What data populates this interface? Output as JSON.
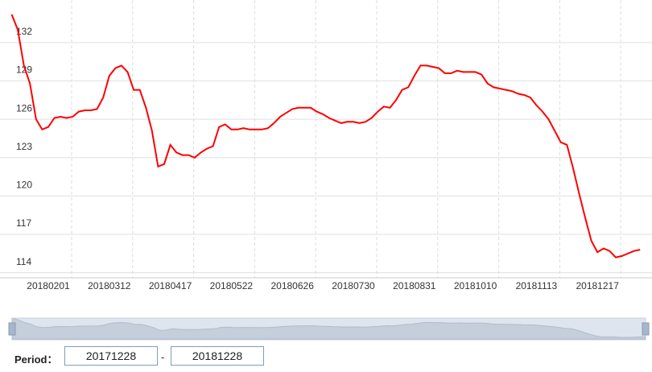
{
  "chart_data": {
    "type": "line",
    "categories": [
      null,
      null,
      null,
      null,
      null,
      null,
      "20180201",
      null,
      null,
      null,
      null,
      null,
      null,
      null,
      null,
      null,
      "20180312",
      null,
      null,
      null,
      null,
      null,
      null,
      null,
      null,
      null,
      "20180417",
      null,
      null,
      null,
      null,
      null,
      null,
      null,
      null,
      null,
      "20180522",
      null,
      null,
      null,
      null,
      null,
      null,
      null,
      null,
      null,
      "20180626",
      null,
      null,
      null,
      null,
      null,
      null,
      null,
      null,
      null,
      "20180730",
      null,
      null,
      null,
      null,
      null,
      null,
      null,
      null,
      null,
      "20180831",
      null,
      null,
      null,
      null,
      null,
      null,
      null,
      null,
      null,
      "20181010",
      null,
      null,
      null,
      null,
      null,
      null,
      null,
      null,
      null,
      "20181113",
      null,
      null,
      null,
      null,
      null,
      null,
      null,
      null,
      null,
      "20181217",
      null,
      null,
      null,
      null,
      null,
      null,
      null
    ],
    "series": [
      {
        "color": "#ff0000",
        "values": [
          134.2,
          133.0,
          130.2,
          128.8,
          126.0,
          125.2,
          125.4,
          126.1,
          126.2,
          126.1,
          126.2,
          126.6,
          126.7,
          126.7,
          126.8,
          127.7,
          129.4,
          130.0,
          130.2,
          129.7,
          128.3,
          128.3,
          126.9,
          125.1,
          122.3,
          122.5,
          124.0,
          123.4,
          123.2,
          123.2,
          123.0,
          123.4,
          123.7,
          123.9,
          125.4,
          125.6,
          125.2,
          125.2,
          125.3,
          125.2,
          125.2,
          125.2,
          125.3,
          125.7,
          126.2,
          126.5,
          126.8,
          126.9,
          126.9,
          126.9,
          126.6,
          126.4,
          126.1,
          125.9,
          125.7,
          125.8,
          125.8,
          125.7,
          125.8,
          126.1,
          126.6,
          127.0,
          126.9,
          127.5,
          128.3,
          128.5,
          129.4,
          130.2,
          130.2,
          130.1,
          130.0,
          129.6,
          129.6,
          129.8,
          129.7,
          129.7,
          129.7,
          129.5,
          128.8,
          128.5,
          128.4,
          128.3,
          128.2,
          128.0,
          127.9,
          127.7,
          127.1,
          126.6,
          126.0,
          125.1,
          124.2,
          124.0,
          122.2,
          120.2,
          118.3,
          116.5,
          115.6,
          115.9,
          115.7,
          115.2,
          115.3,
          115.5,
          115.7,
          115.8
        ]
      }
    ],
    "ylim": [
      113.6,
      134.7
    ],
    "yticks": [
      132,
      129,
      126,
      123,
      120,
      117,
      114
    ],
    "grid": true
  },
  "controls": {
    "period_label": "Period：",
    "start": "20171228",
    "separator": "-",
    "end": "20181228"
  }
}
